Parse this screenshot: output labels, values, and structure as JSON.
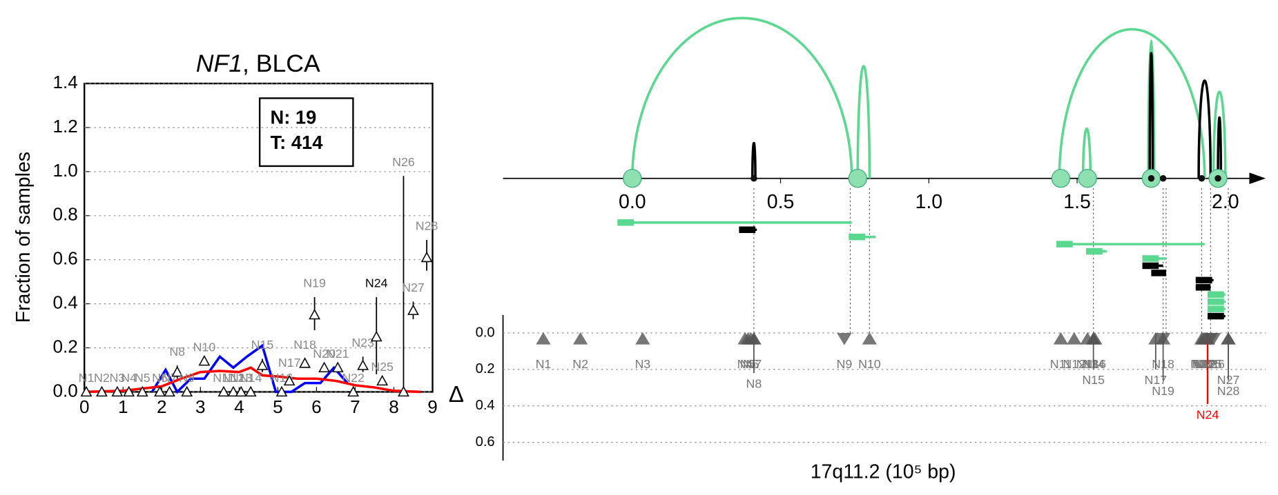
{
  "chart_data": [
    {
      "type": "line",
      "title": [
        "NF1",
        ", BLCA"
      ],
      "ylabel": "Fraction of samples",
      "xlim": [
        0,
        9
      ],
      "xticks": [
        0,
        1,
        2,
        3,
        4,
        5,
        6,
        7,
        8,
        9
      ],
      "ylim": [
        0,
        1.4
      ],
      "yticks": [
        {
          "value": 0,
          "label": "0.0"
        },
        {
          "value": 0.2,
          "label": "0.2"
        },
        {
          "value": 0.4,
          "label": "0.4"
        },
        {
          "value": 0.6,
          "label": "0.6"
        },
        {
          "value": 0.8,
          "label": "0.8"
        },
        {
          "value": 1.0,
          "label": "1.0"
        },
        {
          "value": 1.2,
          "label": "1.2"
        },
        {
          "value": 1.4,
          "label": "1.4"
        }
      ],
      "grid": true,
      "legend": [
        "N: 19",
        "T: 414"
      ],
      "series": [
        {
          "color": "#0000ff",
          "x": [
            1.75,
            2.1,
            2.4,
            2.75,
            3.1,
            3.5,
            3.85,
            4.2,
            4.6,
            4.95,
            5.35,
            5.7,
            6.1,
            6.45,
            6.8
          ],
          "values": [
            0,
            0.1,
            0,
            0.06,
            0.06,
            0.16,
            0.11,
            0.16,
            0.21,
            0,
            0,
            0.04,
            0.04,
            0.11,
            0.04
          ]
        },
        {
          "color": "#ff0000",
          "x": [
            0,
            1,
            1.5,
            2,
            2.5,
            3,
            3.5,
            4,
            4.3,
            4.6,
            5,
            5.5,
            6,
            6.5,
            7,
            7.5,
            8,
            8.7
          ],
          "values": [
            0,
            0.005,
            0.015,
            0.025,
            0.06,
            0.09,
            0.095,
            0.09,
            0.11,
            0.075,
            0.07,
            0.06,
            0.06,
            0.05,
            0.03,
            0.02,
            0.005,
            0
          ]
        }
      ],
      "points": [
        {
          "label": "N1",
          "x": 0.05,
          "y": 0,
          "lo": 0,
          "hi": 0
        },
        {
          "label": "N2",
          "x": 0.45,
          "y": 0,
          "lo": 0,
          "hi": 0
        },
        {
          "label": "N3",
          "x": 0.85,
          "y": 0,
          "lo": 0,
          "hi": 0
        },
        {
          "label": "N4",
          "x": 1.15,
          "y": 0,
          "lo": 0,
          "hi": 0
        },
        {
          "label": "N5",
          "x": 1.5,
          "y": 0,
          "lo": 0,
          "hi": 0
        },
        {
          "label": "N6",
          "x": 1.95,
          "y": 0,
          "lo": 0,
          "hi": 0
        },
        {
          "label": "N7",
          "x": 2.2,
          "y": 0,
          "lo": 0,
          "hi": 0
        },
        {
          "label": "N8",
          "x": 2.4,
          "y": 0.09,
          "lo": 0.06,
          "hi": 0.12
        },
        {
          "label": "N9",
          "x": 2.65,
          "y": 0,
          "lo": 0,
          "hi": 0
        },
        {
          "label": "N10",
          "x": 3.1,
          "y": 0.14,
          "lo": 0.14,
          "hi": 0.14
        },
        {
          "label": "N11",
          "x": 3.6,
          "y": 0,
          "lo": 0,
          "hi": 0
        },
        {
          "label": "N12",
          "x": 3.85,
          "y": 0,
          "lo": 0,
          "hi": 0
        },
        {
          "label": "N13",
          "x": 4.05,
          "y": 0,
          "lo": 0,
          "hi": 0
        },
        {
          "label": "N14",
          "x": 4.3,
          "y": 0,
          "lo": 0,
          "hi": 0
        },
        {
          "label": "N15",
          "x": 4.6,
          "y": 0.12,
          "lo": 0.09,
          "hi": 0.15
        },
        {
          "label": "N16",
          "x": 5.1,
          "y": 0,
          "lo": 0,
          "hi": 0
        },
        {
          "label": "N17",
          "x": 5.3,
          "y": 0.05,
          "lo": 0.03,
          "hi": 0.07
        },
        {
          "label": "N18",
          "x": 5.7,
          "y": 0.13,
          "lo": 0.11,
          "hi": 0.15
        },
        {
          "label": "N19",
          "x": 5.95,
          "y": 0.35,
          "lo": 0.28,
          "hi": 0.43
        },
        {
          "label": "N20",
          "x": 6.2,
          "y": 0.11,
          "lo": 0.11,
          "hi": 0.11
        },
        {
          "label": "N21",
          "x": 6.55,
          "y": 0.11,
          "lo": 0.11,
          "hi": 0.11
        },
        {
          "label": "N22",
          "x": 6.95,
          "y": 0,
          "lo": 0,
          "hi": 0
        },
        {
          "label": "N23",
          "x": 7.2,
          "y": 0.12,
          "lo": 0.09,
          "hi": 0.16
        },
        {
          "label": "N24",
          "x": 7.55,
          "y": 0.25,
          "lo": 0.08,
          "hi": 0.43,
          "label_color": "#000000"
        },
        {
          "label": "N25",
          "x": 7.7,
          "y": 0.05,
          "lo": 0.05,
          "hi": 0.05
        },
        {
          "label": "N26",
          "x": 8.25,
          "y": 0,
          "lo": 0,
          "hi": 0.98
        },
        {
          "label": "N27",
          "x": 8.5,
          "y": 0.37,
          "lo": 0.33,
          "hi": 0.41
        },
        {
          "label": "N28",
          "x": 8.85,
          "y": 0.61,
          "lo": 0.55,
          "hi": 0.69
        }
      ]
    },
    {
      "type": "arc",
      "xlabel": "17q11.2 (10⁵ bp)",
      "dlabel": "Δ",
      "xlim": [
        -0.436,
        2.136
      ],
      "xticks": [
        {
          "value": 0,
          "label": "0.0"
        },
        {
          "value": 0.5,
          "label": "0.5"
        },
        {
          "value": 1.0,
          "label": "1.0"
        },
        {
          "value": 1.5,
          "label": "1.5"
        },
        {
          "value": 2.0,
          "label": "2.0"
        }
      ],
      "dlim": [
        0,
        0.7
      ],
      "dticks": [
        {
          "value": 0,
          "label": "0.0"
        },
        {
          "value": 0.2,
          "label": "0.2"
        },
        {
          "value": 0.4,
          "label": "0.4"
        },
        {
          "value": 0.6,
          "label": "0.6"
        }
      ],
      "arcs": [
        {
          "from": 0.0,
          "to": 0.74,
          "height": 1.0,
          "color": "#5ad88f"
        },
        {
          "from": 0.76,
          "to": 0.8,
          "height": 0.7,
          "color": "#5ad88f"
        },
        {
          "from": 1.44,
          "to": 1.93,
          "height": 0.93,
          "color": "#5ad88f"
        },
        {
          "from": 1.52,
          "to": 1.545,
          "height": 0.31,
          "color": "#5ad88f"
        },
        {
          "from": 1.74,
          "to": 1.76,
          "height": 0.86,
          "color": "#5ad88f"
        },
        {
          "from": 1.96,
          "to": 2.0,
          "height": 0.54,
          "color": "#5ad88f"
        },
        {
          "from": 0.405,
          "to": 0.415,
          "height": 0.22,
          "color": "#000000"
        },
        {
          "from": 1.745,
          "to": 1.755,
          "height": 0.78,
          "color": "#000000"
        },
        {
          "from": 1.91,
          "to": 1.95,
          "height": 0.61,
          "color": "#000000"
        },
        {
          "from": 1.975,
          "to": 1.985,
          "height": 0.38,
          "color": "#000000"
        }
      ],
      "sites": [
        {
          "x": 0.0,
          "kind": "circle"
        },
        {
          "x": 0.76,
          "kind": "circle"
        },
        {
          "x": 1.445,
          "kind": "circle"
        },
        {
          "x": 1.535,
          "kind": "circle"
        },
        {
          "x": 1.75,
          "kind": "circle"
        },
        {
          "x": 1.975,
          "kind": "circle"
        },
        {
          "x": 0.41,
          "kind": "dot"
        },
        {
          "x": 1.75,
          "kind": "dot"
        },
        {
          "x": 1.79,
          "kind": "dot"
        },
        {
          "x": 1.92,
          "kind": "dot"
        },
        {
          "x": 1.975,
          "kind": "dot"
        }
      ],
      "guides": [
        0.41,
        0.735,
        0.8,
        1.555,
        1.79,
        1.8,
        1.92,
        1.95,
        2.01
      ],
      "segments": [
        {
          "from": -0.05,
          "to": 0.74,
          "color": "#5ad88f"
        },
        {
          "from": 0.36,
          "to": 0.42,
          "color": "#000000"
        },
        {
          "from": 0.73,
          "to": 0.82,
          "color": "#5ad88f"
        },
        {
          "from": 1.43,
          "to": 1.93,
          "color": "#5ad88f"
        },
        {
          "from": 1.53,
          "to": 1.6,
          "color": "#5ad88f"
        },
        {
          "from": 1.72,
          "to": 1.8,
          "color": "#5ad88f"
        },
        {
          "from": 1.72,
          "to": 1.79,
          "color": "#000000"
        },
        {
          "from": 1.75,
          "to": 1.8,
          "color": "#000000"
        },
        {
          "from": 1.9,
          "to": 1.96,
          "color": "#000000"
        },
        {
          "from": 1.9,
          "to": 1.95,
          "color": "#000000"
        },
        {
          "from": 1.94,
          "to": 2.0,
          "color": "#5ad88f"
        },
        {
          "from": 1.94,
          "to": 2.0,
          "color": "#5ad88f"
        },
        {
          "from": 1.94,
          "to": 2.0,
          "color": "#5ad88f"
        },
        {
          "from": 1.94,
          "to": 2.0,
          "color": "#000000"
        }
      ],
      "nodes": [
        {
          "label": "N1",
          "x": -0.3,
          "delta": 0,
          "dir": "up"
        },
        {
          "label": "N2",
          "x": -0.175,
          "delta": 0,
          "dir": "up"
        },
        {
          "label": "N3",
          "x": 0.035,
          "delta": 0,
          "dir": "up"
        },
        {
          "label": "N4",
          "x": 0.38,
          "delta": 0,
          "dir": "up"
        },
        {
          "label": "N5",
          "x": 0.39,
          "delta": 0,
          "dir": "up"
        },
        {
          "label": "N6",
          "x": 0.4,
          "delta": 0,
          "dir": "up"
        },
        {
          "label": "N7",
          "x": 0.41,
          "delta": 0,
          "dir": "up"
        },
        {
          "label": "N8",
          "x": 0.41,
          "delta": 0.22,
          "dir": "up"
        },
        {
          "label": "N9",
          "x": 0.715,
          "delta": 0,
          "dir": "down"
        },
        {
          "label": "N10",
          "x": 0.8,
          "delta": 0,
          "dir": "up"
        },
        {
          "label": "N11",
          "x": 1.445,
          "delta": 0,
          "dir": "up"
        },
        {
          "label": "N12",
          "x": 1.49,
          "delta": 0,
          "dir": "up"
        },
        {
          "label": "N13",
          "x": 1.535,
          "delta": 0,
          "dir": "up"
        },
        {
          "label": "N14",
          "x": 1.555,
          "delta": 0,
          "dir": "up"
        },
        {
          "label": "N15",
          "x": 1.555,
          "delta": 0.2,
          "dir": "up"
        },
        {
          "label": "N16",
          "x": 1.56,
          "delta": 0,
          "dir": "up"
        },
        {
          "label": "N17",
          "x": 1.765,
          "delta": 0.2,
          "dir": "up"
        },
        {
          "label": "N18",
          "x": 1.79,
          "delta": 0,
          "dir": "down"
        },
        {
          "label": "N19",
          "x": 1.79,
          "delta": 0.26,
          "dir": "up"
        },
        {
          "label": "N20",
          "x": 1.92,
          "delta": 0,
          "dir": "up"
        },
        {
          "label": "N21",
          "x": 1.925,
          "delta": 0,
          "dir": "up"
        },
        {
          "label": "N22",
          "x": 1.93,
          "delta": 0,
          "dir": "up"
        },
        {
          "label": "N23",
          "x": 1.935,
          "delta": 0,
          "dir": "up"
        },
        {
          "label": "N24",
          "x": 1.94,
          "delta": 0.39,
          "dir": "up",
          "color": "#ff0000"
        },
        {
          "label": "N25",
          "x": 1.95,
          "delta": 0,
          "dir": "down"
        },
        {
          "label": "N26",
          "x": 1.96,
          "delta": 0,
          "dir": "down"
        },
        {
          "label": "N27",
          "x": 2.01,
          "delta": 0.2,
          "dir": "up"
        },
        {
          "label": "N28",
          "x": 2.01,
          "delta": 0.26,
          "dir": "up"
        }
      ]
    }
  ]
}
